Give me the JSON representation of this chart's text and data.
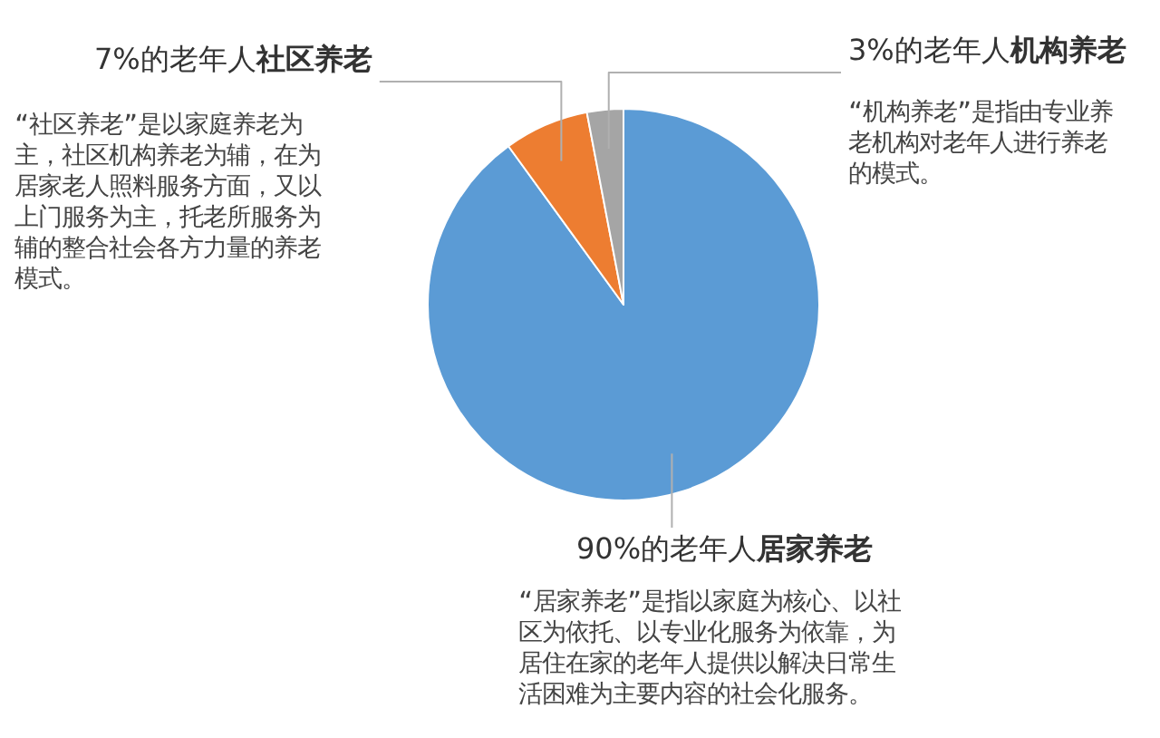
{
  "chart_data": {
    "type": "pie",
    "categories": [
      "90%的老年人**居家养老**",
      "7%的老年人**社区养老**",
      "3%的老年人**机构养老**"
    ],
    "values": [
      90,
      7,
      3
    ],
    "colors": [
      "#5b9bd5",
      "#ed7d31",
      "#a5a5a5"
    ],
    "annotations": [
      "“居家养老”是指以家庭为核心、以社区为依托、以专业化服务为依靠，为居住在家的老年人提供以解决日常生活困难为主要内容的社会化服务。",
      "“社区养老”是以家庭养老为主，社区机构养老为辅，在为居家老人照料服务方面，又以上门服务为主，托老所服务为辅的整合社会各方力量的养老模式。",
      "“机构养老”是指由专业养老机构对老年人进行养老的模式。"
    ]
  }
}
